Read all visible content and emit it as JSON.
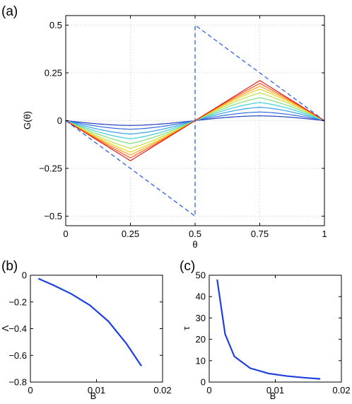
{
  "chart_data": [
    {
      "panel": "(a)",
      "type": "line",
      "xlabel": "θ",
      "ylabel": "G(θ)",
      "xlim": [
        0,
        1
      ],
      "ylim": [
        -0.55,
        0.55
      ],
      "xticks": [
        0,
        0.25,
        0.5,
        0.75,
        1
      ],
      "xtick_labels": [
        "0",
        "0.25",
        "0.5",
        "0.75",
        "1"
      ],
      "yticks": [
        -0.5,
        -0.25,
        0,
        0.25,
        0.5
      ],
      "ytick_labels": [
        "−0.5",
        "−0.25",
        "0",
        "0.25",
        "0.5"
      ],
      "grid": true,
      "series": [
        {
          "amplitude": 0.025,
          "color": "#1f3fbf"
        },
        {
          "amplitude": 0.045,
          "color": "#2f6ae0"
        },
        {
          "amplitude": 0.07,
          "color": "#39a0ea"
        },
        {
          "amplitude": 0.095,
          "color": "#3fd0d8"
        },
        {
          "amplitude": 0.12,
          "color": "#7fe07a"
        },
        {
          "amplitude": 0.145,
          "color": "#c0e040"
        },
        {
          "amplitude": 0.165,
          "color": "#f0d020"
        },
        {
          "amplitude": 0.18,
          "color": "#ffa020"
        },
        {
          "amplitude": 0.195,
          "color": "#ff5a20"
        },
        {
          "amplitude": 0.21,
          "color": "#e02020"
        }
      ],
      "limit_curve": {
        "style": "dashed",
        "color": "#3060e0",
        "amplitude": 0.5,
        "points": [
          [
            0,
            0
          ],
          [
            0.5,
            -0.5
          ],
          [
            0.5,
            0.5
          ],
          [
            1,
            0
          ]
        ]
      }
    },
    {
      "panel": "(b)",
      "type": "line",
      "xlabel": "B",
      "ylabel": "Λ",
      "xlim": [
        0,
        0.02
      ],
      "ylim": [
        -0.8,
        0
      ],
      "xticks": [
        0,
        0.01,
        0.02
      ],
      "xtick_labels": [
        "0",
        "0.01",
        "0.02"
      ],
      "yticks": [
        -0.8,
        -0.6,
        -0.4,
        -0.2,
        0
      ],
      "ytick_labels": [
        "−0.8",
        "−0.6",
        "−0.4",
        "−0.2",
        "0"
      ],
      "color": "#1f3fe0",
      "x": [
        0.0012,
        0.0035,
        0.0062,
        0.009,
        0.0118,
        0.0145,
        0.0168
      ],
      "y": [
        -0.025,
        -0.075,
        -0.14,
        -0.225,
        -0.345,
        -0.51,
        -0.68
      ]
    },
    {
      "panel": "(c)",
      "type": "line",
      "xlabel": "B",
      "ylabel": "τ",
      "xlim": [
        0,
        0.02
      ],
      "ylim": [
        0,
        50
      ],
      "xticks": [
        0,
        0.01,
        0.02
      ],
      "xtick_labels": [
        "0",
        "0.01",
        "0.02"
      ],
      "yticks": [
        0,
        10,
        20,
        30,
        40,
        50
      ],
      "ytick_labels": [
        "0",
        "10",
        "20",
        "30",
        "40",
        "50"
      ],
      "color": "#1f3fe0",
      "x": [
        0.0012,
        0.0024,
        0.0038,
        0.0062,
        0.009,
        0.0118,
        0.0145,
        0.0168
      ],
      "y": [
        48,
        22.5,
        12,
        6.5,
        4,
        2.8,
        2,
        1.5
      ]
    }
  ]
}
